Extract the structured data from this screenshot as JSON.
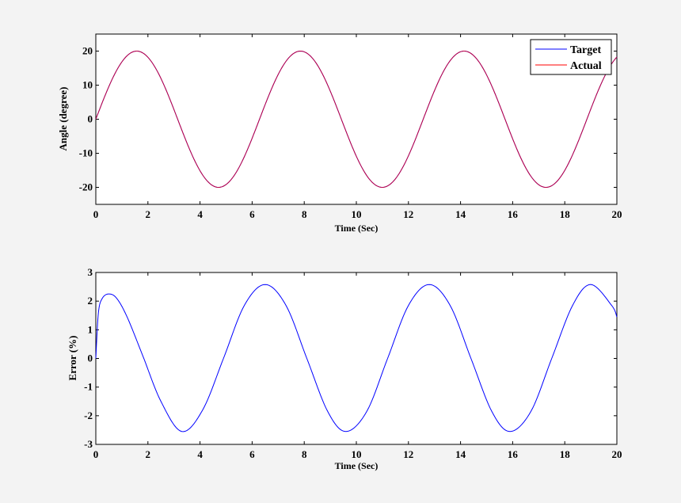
{
  "chart_data": [
    {
      "type": "line",
      "title": "",
      "xlabel": "Time (Sec)",
      "ylabel": "Angle  (degree)",
      "xlim": [
        0,
        20
      ],
      "ylim": [
        -25,
        25
      ],
      "xticks": [
        0,
        2,
        4,
        6,
        8,
        10,
        12,
        14,
        16,
        18,
        20
      ],
      "yticks": [
        -20,
        -10,
        0,
        10,
        20
      ],
      "grid": false,
      "legend_position": "top-right",
      "series": [
        {
          "name": "Target",
          "color": "#0000ff",
          "function": "20*sin(t)",
          "x_range": [
            0,
            20
          ]
        },
        {
          "name": "Actual",
          "color": "#ff0000",
          "function": "20*sin(t)",
          "x_range": [
            0,
            20
          ]
        }
      ]
    },
    {
      "type": "line",
      "title": "",
      "xlabel": "Time (Sec)",
      "ylabel": "Error  (%)",
      "xlim": [
        0,
        20
      ],
      "ylim": [
        -3,
        3
      ],
      "xticks": [
        0,
        2,
        4,
        6,
        8,
        10,
        12,
        14,
        16,
        18,
        20
      ],
      "yticks": [
        -3,
        -2,
        -1,
        0,
        1,
        2,
        3
      ],
      "grid": false,
      "series": [
        {
          "color": "#0000ff",
          "x": [
            0,
            0.1,
            0.25,
            0.5,
            0.8,
            1.2,
            1.8,
            2.5,
            3.3,
            4.1,
            4.9,
            5.7,
            6.5,
            7.3,
            8.1,
            8.9,
            9.6,
            10.4,
            11.2,
            12.0,
            12.8,
            13.6,
            14.4,
            15.2,
            15.9,
            16.7,
            17.5,
            18.3,
            19.0,
            19.8,
            20
          ],
          "y": [
            0,
            1.6,
            2.1,
            2.25,
            2.1,
            1.45,
            0.1,
            -1.5,
            -2.55,
            -1.8,
            0.0,
            1.85,
            2.58,
            1.85,
            0.0,
            -1.85,
            -2.55,
            -1.85,
            0.0,
            1.85,
            2.58,
            1.85,
            0.0,
            -1.85,
            -2.55,
            -1.85,
            0.0,
            1.85,
            2.58,
            1.85,
            1.45
          ]
        }
      ]
    }
  ]
}
